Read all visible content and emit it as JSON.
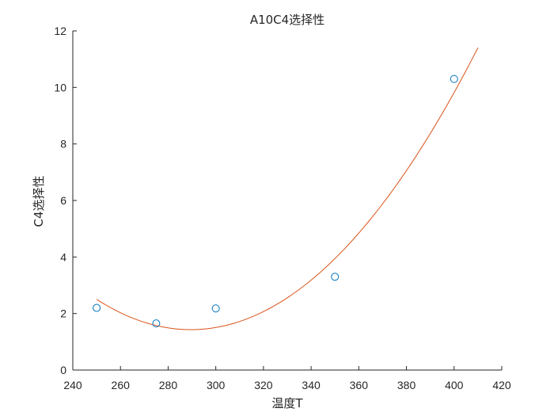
{
  "chart_data": {
    "type": "scatter",
    "title": "A10C4选择性",
    "xlabel": "温度T",
    "ylabel": "C4选择性",
    "xlim": [
      240,
      420
    ],
    "ylim": [
      0,
      12
    ],
    "xticks": [
      240,
      260,
      280,
      300,
      320,
      340,
      360,
      380,
      400,
      420
    ],
    "yticks": [
      0,
      2,
      4,
      6,
      8,
      10,
      12
    ],
    "grid": false,
    "series": [
      {
        "kind": "points",
        "marker": "open-circle",
        "color": "#0072BD",
        "x": [
          250,
          275,
          300,
          350,
          400
        ],
        "y": [
          2.2,
          1.65,
          2.18,
          3.3,
          10.3
        ]
      },
      {
        "kind": "fit-curve",
        "color": "#D95319",
        "x_range": [
          250,
          410
        ],
        "poly_vertex": [
          289.5,
          1.43
        ],
        "poly_a": 0.000687
      }
    ]
  }
}
